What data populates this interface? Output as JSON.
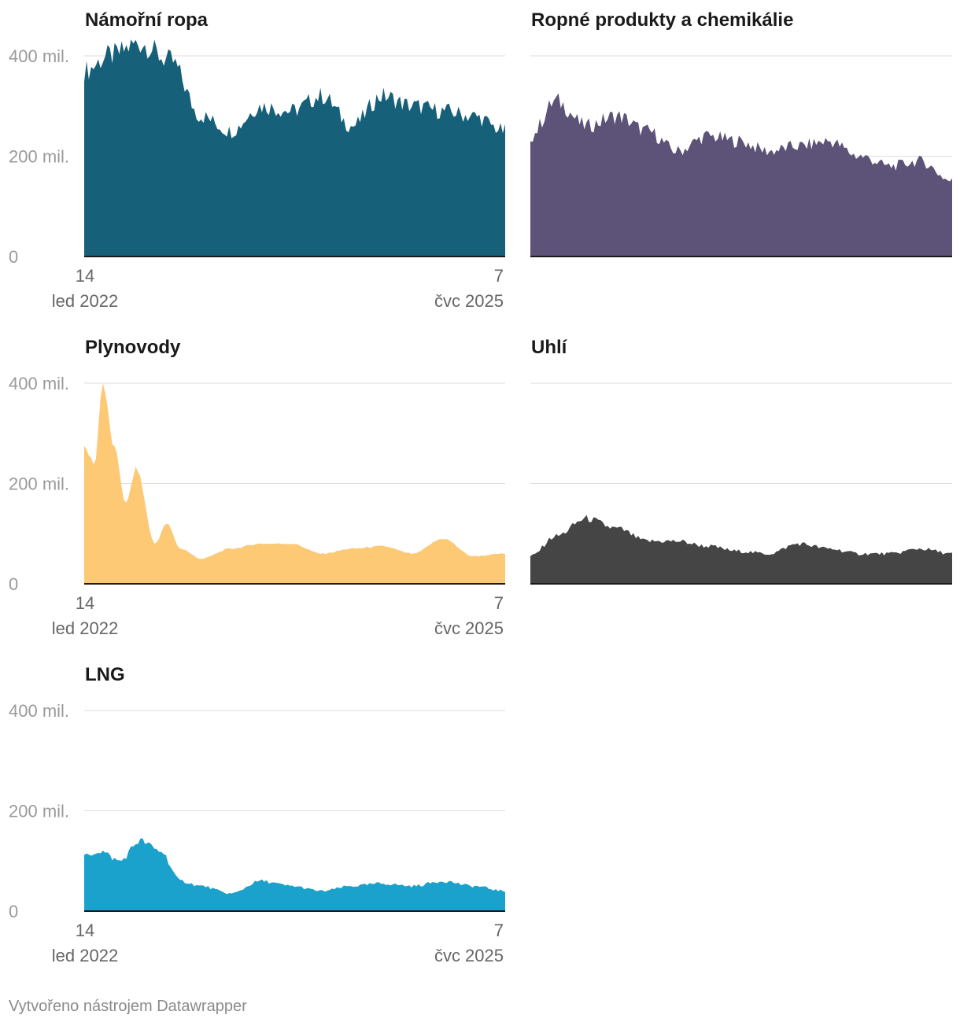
{
  "footer": "Vytvořeno nástrojem Datawrapper",
  "chart_data": {
    "type": "area",
    "layout": "small-multiples",
    "y_ticks": [
      {
        "value": 0,
        "label": "0"
      },
      {
        "value": 200000000,
        "label": "200 mil."
      },
      {
        "value": 400000000,
        "label": "400 mil."
      }
    ],
    "ylim": [
      0,
      400000000
    ],
    "x_ticks": [
      {
        "date": "2022-01-14",
        "day": "14",
        "month_year": "led 2022"
      },
      {
        "date": "2025-07-07",
        "day": "7",
        "month_year": "čvc 2025"
      }
    ],
    "grid": true,
    "series": [
      {
        "name": "Námořní ropa",
        "color": "#17607a",
        "dates": [
          "2022-01-14",
          "2022-04-01",
          "2022-07-01",
          "2022-10-01",
          "2023-01-01",
          "2023-04-01",
          "2023-07-01",
          "2023-10-01",
          "2024-01-01",
          "2024-04-01",
          "2024-07-01",
          "2024-10-01",
          "2025-01-01",
          "2025-04-01",
          "2025-07-07"
        ],
        "values": [
          370000000,
          400000000,
          425000000,
          390000000,
          280000000,
          250000000,
          300000000,
          290000000,
          320000000,
          260000000,
          320000000,
          300000000,
          290000000,
          280000000,
          250000000
        ]
      },
      {
        "name": "Ropné produkty a chemikálie",
        "color": "#5d5277",
        "dates": [
          "2022-01-14",
          "2022-04-01",
          "2022-07-01",
          "2022-10-01",
          "2023-01-01",
          "2023-04-01",
          "2023-07-01",
          "2023-10-01",
          "2024-01-01",
          "2024-04-01",
          "2024-07-01",
          "2024-10-01",
          "2025-01-01",
          "2025-04-01",
          "2025-07-07"
        ],
        "values": [
          240000000,
          310000000,
          260000000,
          280000000,
          250000000,
          210000000,
          240000000,
          230000000,
          210000000,
          220000000,
          230000000,
          200000000,
          180000000,
          190000000,
          150000000
        ]
      },
      {
        "name": "Plynovody",
        "color": "#fdc975",
        "dates": [
          "2022-01-14",
          "2022-02-15",
          "2022-03-10",
          "2022-04-15",
          "2022-05-20",
          "2022-06-20",
          "2022-08-15",
          "2022-09-20",
          "2022-11-01",
          "2023-01-01",
          "2023-04-01",
          "2023-07-01",
          "2023-10-01",
          "2024-01-01",
          "2024-04-01",
          "2024-07-01",
          "2024-10-01",
          "2025-01-01",
          "2025-04-01",
          "2025-07-07"
        ],
        "values": [
          270000000,
          240000000,
          400000000,
          270000000,
          160000000,
          230000000,
          80000000,
          120000000,
          70000000,
          50000000,
          70000000,
          80000000,
          80000000,
          60000000,
          70000000,
          75000000,
          60000000,
          90000000,
          55000000,
          60000000
        ]
      },
      {
        "name": "Uhlí",
        "color": "#454545",
        "dates": [
          "2022-01-14",
          "2022-04-01",
          "2022-07-01",
          "2022-10-01",
          "2023-01-01",
          "2023-04-01",
          "2023-07-01",
          "2023-10-01",
          "2024-01-01",
          "2024-04-01",
          "2024-07-01",
          "2024-10-01",
          "2025-01-01",
          "2025-04-01",
          "2025-07-07"
        ],
        "values": [
          55000000,
          95000000,
          130000000,
          110000000,
          85000000,
          85000000,
          75000000,
          65000000,
          60000000,
          80000000,
          70000000,
          60000000,
          60000000,
          70000000,
          60000000
        ]
      },
      {
        "name": "LNG",
        "color": "#1aa2cd",
        "dates": [
          "2022-01-14",
          "2022-03-01",
          "2022-05-01",
          "2022-07-01",
          "2022-09-01",
          "2022-11-01",
          "2023-01-01",
          "2023-04-01",
          "2023-07-01",
          "2023-10-01",
          "2024-01-01",
          "2024-04-01",
          "2024-07-01",
          "2024-10-01",
          "2025-01-01",
          "2025-04-01",
          "2025-07-07"
        ],
        "values": [
          110000000,
          120000000,
          100000000,
          140000000,
          120000000,
          60000000,
          50000000,
          35000000,
          60000000,
          50000000,
          40000000,
          50000000,
          55000000,
          50000000,
          60000000,
          50000000,
          40000000
        ]
      }
    ]
  }
}
